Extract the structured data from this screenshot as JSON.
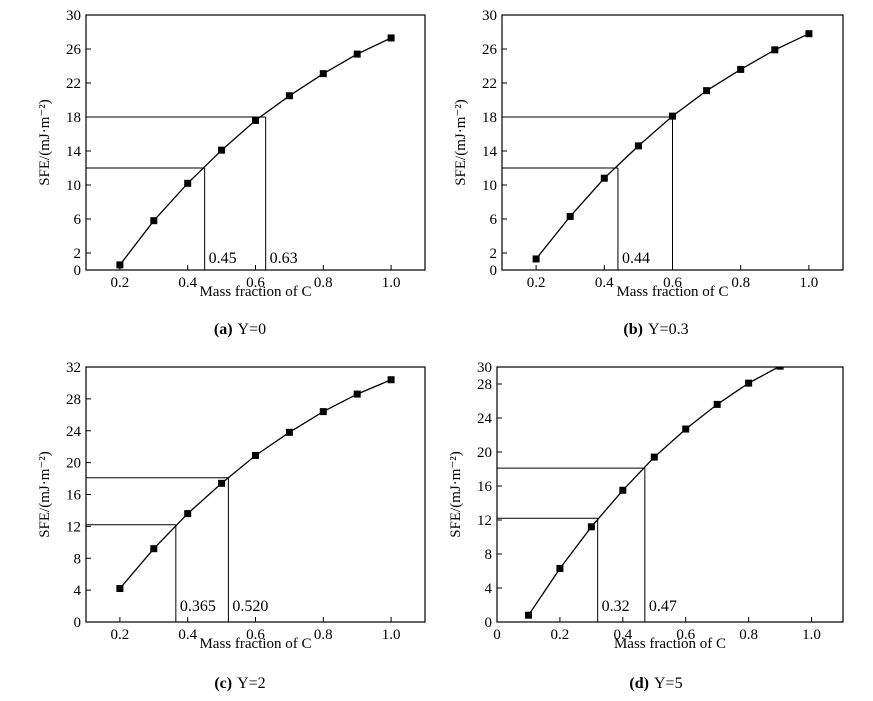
{
  "chart_data": [
    {
      "type": "line",
      "caption": {
        "letter": "(a)",
        "text": "Y=0"
      },
      "xlabel": "Mass fraction of C",
      "ylabel": "SFE/(mJ·m⁻²)",
      "xlim": [
        0.1,
        1.1
      ],
      "ylim": [
        0,
        30
      ],
      "xticks": [
        "0.2",
        "0.4",
        "0.6",
        "0.8",
        "1.0"
      ],
      "xtick_values": [
        0.2,
        0.4,
        0.6,
        0.8,
        1.0
      ],
      "yticks": [
        "0",
        "2",
        "6",
        "10",
        "14",
        "18",
        "22",
        "26",
        "30"
      ],
      "ytick_values": [
        0,
        2,
        6,
        10,
        14,
        18,
        22,
        26,
        30
      ],
      "x": [
        0.2,
        0.3,
        0.4,
        0.5,
        0.6,
        0.7,
        0.8,
        0.9,
        1.0
      ],
      "y": [
        0.6,
        5.8,
        10.2,
        14.1,
        17.6,
        20.5,
        23.1,
        25.4,
        27.3
      ],
      "marks": [
        {
          "y": 12,
          "x": 0.45,
          "label": "0.45"
        },
        {
          "y": 18,
          "x": 0.63,
          "label": "0.63"
        }
      ]
    },
    {
      "type": "line",
      "caption": {
        "letter": "(b)",
        "text": "Y=0.3"
      },
      "xlabel": "Mass fraction of C",
      "ylabel": "SFE/(mJ·m⁻²)",
      "xlim": [
        0.1,
        1.1
      ],
      "ylim": [
        0,
        30
      ],
      "xticks": [
        "0.2",
        "0.4",
        "0.6",
        "0.8",
        "1.0"
      ],
      "xtick_values": [
        0.2,
        0.4,
        0.6,
        0.8,
        1.0
      ],
      "yticks": [
        "0",
        "2",
        "6",
        "10",
        "14",
        "18",
        "22",
        "26",
        "30"
      ],
      "ytick_values": [
        0,
        2,
        6,
        10,
        14,
        18,
        22,
        26,
        30
      ],
      "x": [
        0.2,
        0.3,
        0.4,
        0.5,
        0.6,
        0.7,
        0.8,
        0.9,
        1.0
      ],
      "y": [
        1.3,
        6.3,
        10.8,
        14.6,
        18.1,
        21.1,
        23.6,
        25.9,
        27.8
      ],
      "marks": [
        {
          "y": 12,
          "x": 0.44,
          "label": "0.44"
        },
        {
          "y": 18,
          "x": 0.6,
          "label": ""
        }
      ]
    },
    {
      "type": "line",
      "caption": {
        "letter": "(c)",
        "text": "Y=2"
      },
      "xlabel": "Mass fraction of C",
      "ylabel": "SFE/(mJ·m⁻²)",
      "xlim": [
        0.1,
        1.1
      ],
      "ylim": [
        0,
        32
      ],
      "xticks": [
        "0.2",
        "0.4",
        "0.6",
        "0.8",
        "1.0"
      ],
      "xtick_values": [
        0.2,
        0.4,
        0.6,
        0.8,
        1.0
      ],
      "yticks": [
        "0",
        "4",
        "8",
        "12",
        "16",
        "20",
        "24",
        "28",
        "32"
      ],
      "ytick_values": [
        0,
        4,
        8,
        12,
        16,
        20,
        24,
        28,
        32
      ],
      "x": [
        0.2,
        0.3,
        0.4,
        0.5,
        0.6,
        0.7,
        0.8,
        0.9,
        1.0
      ],
      "y": [
        4.2,
        9.2,
        13.6,
        17.4,
        20.9,
        23.8,
        26.4,
        28.6,
        30.4
      ],
      "marks": [
        {
          "y": 12.2,
          "x": 0.365,
          "label": "0.365"
        },
        {
          "y": 18.1,
          "x": 0.52,
          "label": "0.520"
        }
      ]
    },
    {
      "type": "line",
      "caption": {
        "letter": "(d)",
        "text": "Y=5"
      },
      "xlabel": "Mass fraction of C",
      "ylabel": "SFE/(mJ·m⁻²)",
      "xlim": [
        0,
        1.1
      ],
      "ylim": [
        0,
        30
      ],
      "xticks": [
        "0",
        "0.2",
        "0.4",
        "0.6",
        "0.8",
        "1.0"
      ],
      "xtick_values": [
        0,
        0.2,
        0.4,
        0.6,
        0.8,
        1.0
      ],
      "yticks": [
        "0",
        "4",
        "8",
        "12",
        "16",
        "20",
        "24",
        "28",
        "30"
      ],
      "ytick_values": [
        0,
        4,
        8,
        12,
        16,
        20,
        24,
        28,
        30
      ],
      "x": [
        0.1,
        0.2,
        0.3,
        0.4,
        0.5,
        0.6,
        0.7,
        0.8,
        0.9
      ],
      "y": [
        0.8,
        6.3,
        11.2,
        15.5,
        19.4,
        22.7,
        25.6,
        28.1,
        30.1
      ],
      "marks": [
        {
          "y": 12.2,
          "x": 0.32,
          "label": "0.32"
        },
        {
          "y": 18.1,
          "x": 0.47,
          "label": "0.47"
        }
      ]
    }
  ]
}
